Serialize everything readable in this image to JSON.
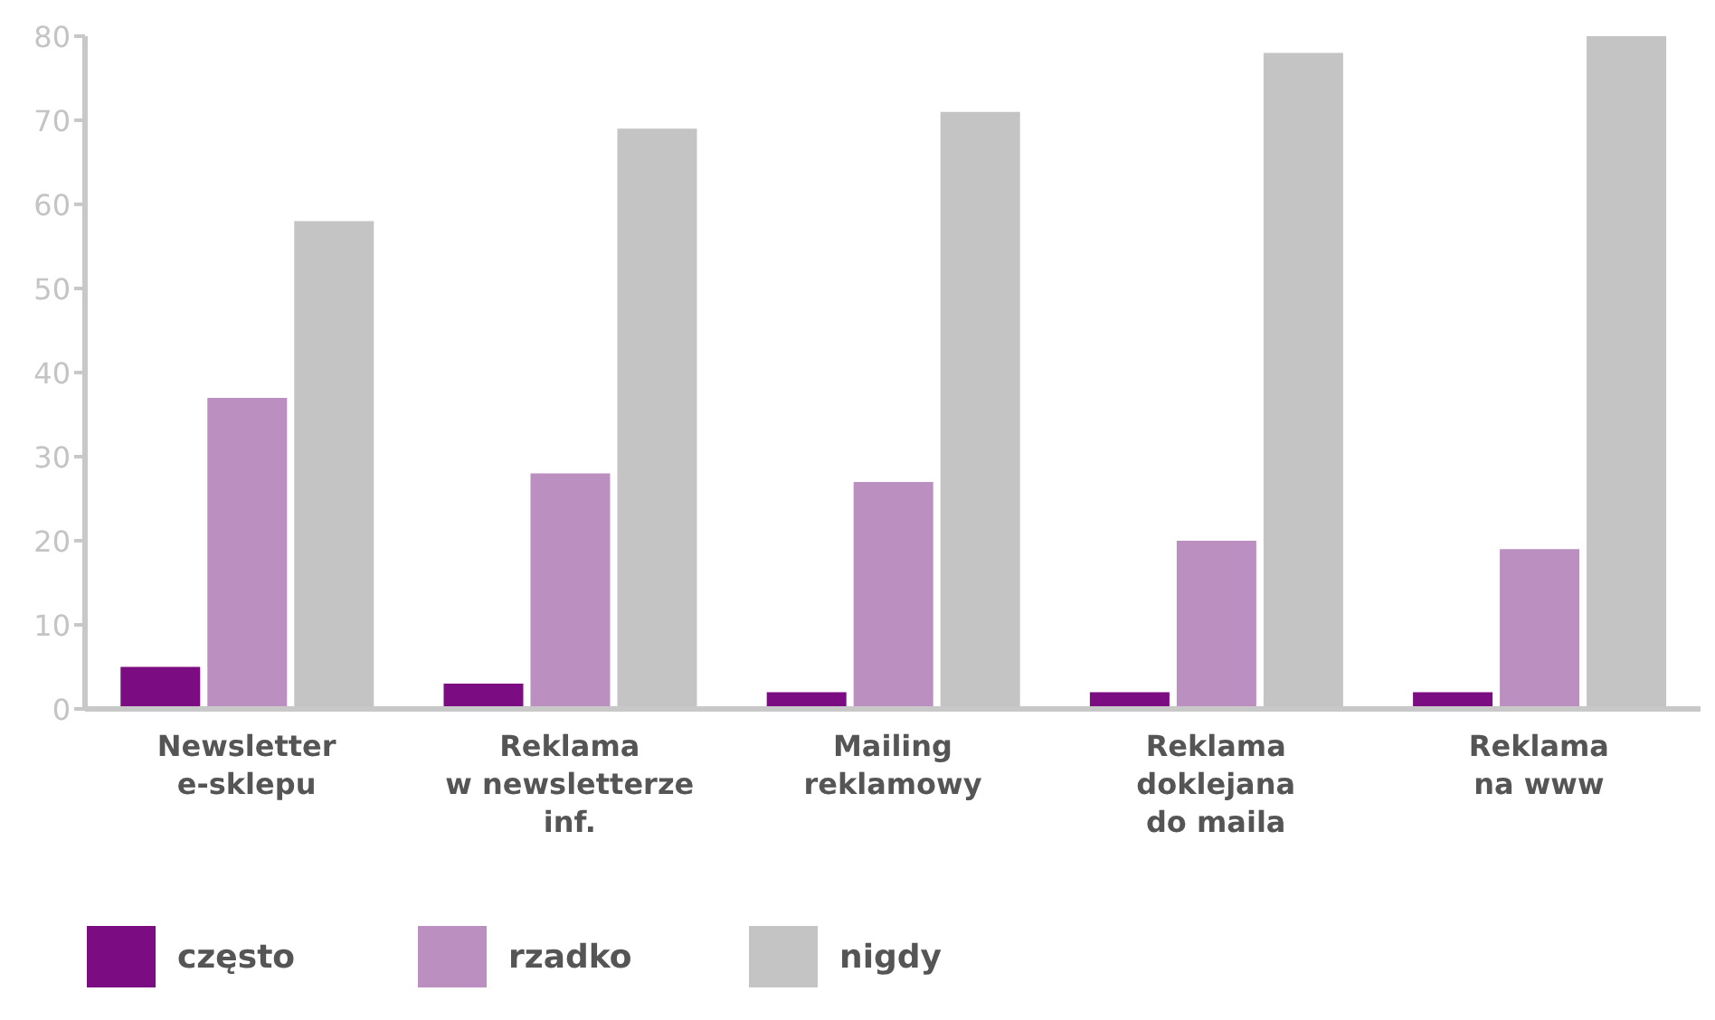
{
  "chart_data": {
    "type": "bar",
    "categories": [
      "Newsletter\ne-sklepu",
      "Reklama\nw newsletterze\ninf.",
      "Mailing\nreklamowy",
      "Reklama\ndoklejana\ndo maila",
      "Reklama\nna www"
    ],
    "series": [
      {
        "name": "często",
        "color": "#7b0c82",
        "values": [
          5,
          3,
          2,
          2,
          2
        ]
      },
      {
        "name": "rzadko",
        "color": "#bb8fc0",
        "values": [
          37,
          28,
          27,
          20,
          19
        ]
      },
      {
        "name": "nigdy",
        "color": "#c4c4c4",
        "values": [
          58,
          69,
          71,
          78,
          80
        ]
      }
    ],
    "ylim": [
      0,
      80
    ],
    "yticks": [
      0,
      10,
      20,
      30,
      40,
      50,
      60,
      70,
      80
    ],
    "legend": "bottom left"
  }
}
